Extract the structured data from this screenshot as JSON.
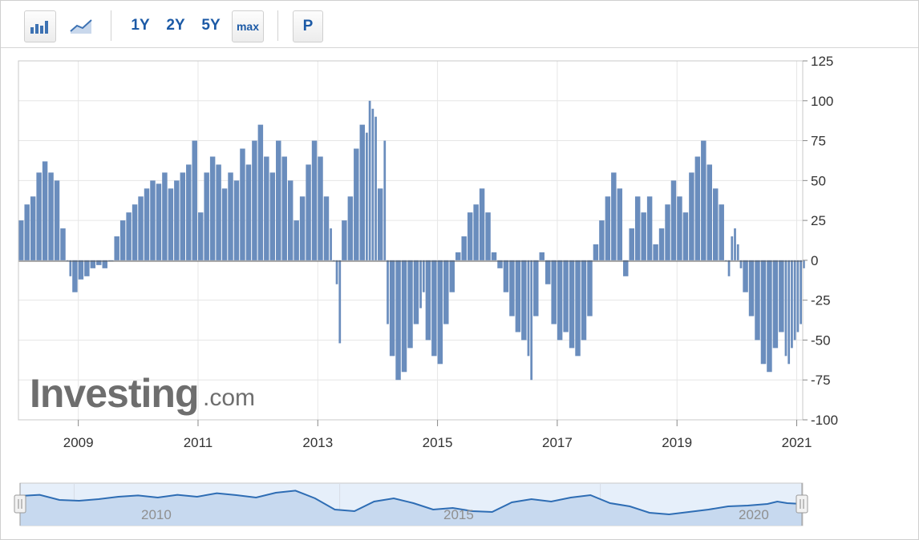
{
  "toolbar": {
    "bar_icon": "bar-chart-icon",
    "line_icon": "line-chart-icon",
    "ranges": [
      "1Y",
      "2Y",
      "5Y",
      "max"
    ],
    "period_label": "P"
  },
  "watermark": {
    "main": "Investing",
    "suffix": ".com"
  },
  "navigator": {
    "labels": [
      "2010",
      "2015",
      "2020"
    ]
  },
  "chart_data": {
    "type": "bar",
    "title": "",
    "xlabel": "",
    "ylabel": "",
    "ylim": [
      -100,
      125
    ],
    "xlim": [
      2008.0,
      2021.1
    ],
    "yticks": [
      125,
      100,
      75,
      50,
      25,
      0,
      -25,
      -50,
      -75,
      -100
    ],
    "xticks": [
      "2009",
      "2011",
      "2013",
      "2015",
      "2017",
      "2019",
      "2021"
    ],
    "grid": true,
    "color": "#6a8dbd",
    "series": [
      {
        "values": [
          [
            2008.0,
            25
          ],
          [
            2008.1,
            35
          ],
          [
            2008.2,
            40
          ],
          [
            2008.3,
            55
          ],
          [
            2008.4,
            62
          ],
          [
            2008.5,
            55
          ],
          [
            2008.6,
            50
          ],
          [
            2008.7,
            20
          ],
          [
            2008.8,
            0
          ],
          [
            2008.85,
            -10
          ],
          [
            2008.9,
            -20
          ],
          [
            2009.0,
            -12
          ],
          [
            2009.1,
            -10
          ],
          [
            2009.2,
            -5
          ],
          [
            2009.3,
            -3
          ],
          [
            2009.4,
            -5
          ],
          [
            2009.5,
            0
          ],
          [
            2009.6,
            15
          ],
          [
            2009.7,
            25
          ],
          [
            2009.8,
            30
          ],
          [
            2009.9,
            35
          ],
          [
            2010.0,
            40
          ],
          [
            2010.1,
            45
          ],
          [
            2010.2,
            50
          ],
          [
            2010.3,
            48
          ],
          [
            2010.4,
            55
          ],
          [
            2010.5,
            45
          ],
          [
            2010.6,
            50
          ],
          [
            2010.7,
            55
          ],
          [
            2010.8,
            60
          ],
          [
            2010.9,
            75
          ],
          [
            2011.0,
            30
          ],
          [
            2011.1,
            55
          ],
          [
            2011.2,
            65
          ],
          [
            2011.3,
            60
          ],
          [
            2011.4,
            45
          ],
          [
            2011.5,
            55
          ],
          [
            2011.6,
            50
          ],
          [
            2011.7,
            70
          ],
          [
            2011.8,
            60
          ],
          [
            2011.9,
            75
          ],
          [
            2012.0,
            85
          ],
          [
            2012.1,
            65
          ],
          [
            2012.2,
            55
          ],
          [
            2012.3,
            75
          ],
          [
            2012.4,
            65
          ],
          [
            2012.5,
            50
          ],
          [
            2012.6,
            25
          ],
          [
            2012.7,
            40
          ],
          [
            2012.8,
            60
          ],
          [
            2012.9,
            75
          ],
          [
            2013.0,
            65
          ],
          [
            2013.1,
            40
          ],
          [
            2013.2,
            20
          ],
          [
            2013.25,
            0
          ],
          [
            2013.3,
            -15
          ],
          [
            2013.35,
            -52
          ],
          [
            2013.4,
            25
          ],
          [
            2013.5,
            40
          ],
          [
            2013.6,
            70
          ],
          [
            2013.7,
            85
          ],
          [
            2013.8,
            80
          ],
          [
            2013.85,
            100
          ],
          [
            2013.9,
            95
          ],
          [
            2013.95,
            90
          ],
          [
            2014.0,
            45
          ],
          [
            2014.1,
            75
          ],
          [
            2014.15,
            -40
          ],
          [
            2014.2,
            -60
          ],
          [
            2014.3,
            -75
          ],
          [
            2014.4,
            -70
          ],
          [
            2014.5,
            -55
          ],
          [
            2014.6,
            -40
          ],
          [
            2014.7,
            -30
          ],
          [
            2014.75,
            -20
          ],
          [
            2014.8,
            -50
          ],
          [
            2014.9,
            -60
          ],
          [
            2015.0,
            -65
          ],
          [
            2015.1,
            -40
          ],
          [
            2015.2,
            -20
          ],
          [
            2015.3,
            5
          ],
          [
            2015.4,
            15
          ],
          [
            2015.5,
            30
          ],
          [
            2015.6,
            35
          ],
          [
            2015.7,
            45
          ],
          [
            2015.8,
            30
          ],
          [
            2015.9,
            5
          ],
          [
            2016.0,
            -5
          ],
          [
            2016.1,
            -20
          ],
          [
            2016.2,
            -35
          ],
          [
            2016.3,
            -45
          ],
          [
            2016.4,
            -50
          ],
          [
            2016.5,
            -60
          ],
          [
            2016.55,
            -75
          ],
          [
            2016.6,
            -35
          ],
          [
            2016.7,
            5
          ],
          [
            2016.8,
            -15
          ],
          [
            2016.9,
            -40
          ],
          [
            2017.0,
            -50
          ],
          [
            2017.1,
            -45
          ],
          [
            2017.2,
            -55
          ],
          [
            2017.3,
            -60
          ],
          [
            2017.4,
            -50
          ],
          [
            2017.5,
            -35
          ],
          [
            2017.6,
            10
          ],
          [
            2017.7,
            25
          ],
          [
            2017.8,
            40
          ],
          [
            2017.9,
            55
          ],
          [
            2018.0,
            45
          ],
          [
            2018.1,
            -10
          ],
          [
            2018.2,
            20
          ],
          [
            2018.3,
            40
          ],
          [
            2018.4,
            30
          ],
          [
            2018.5,
            40
          ],
          [
            2018.6,
            10
          ],
          [
            2018.7,
            20
          ],
          [
            2018.8,
            35
          ],
          [
            2018.9,
            50
          ],
          [
            2019.0,
            40
          ],
          [
            2019.1,
            30
          ],
          [
            2019.2,
            55
          ],
          [
            2019.3,
            65
          ],
          [
            2019.4,
            75
          ],
          [
            2019.5,
            60
          ],
          [
            2019.6,
            45
          ],
          [
            2019.7,
            35
          ],
          [
            2019.8,
            0
          ],
          [
            2019.85,
            -10
          ],
          [
            2019.9,
            15
          ],
          [
            2019.95,
            20
          ],
          [
            2020.0,
            10
          ],
          [
            2020.05,
            -5
          ],
          [
            2020.1,
            -20
          ],
          [
            2020.2,
            -35
          ],
          [
            2020.3,
            -50
          ],
          [
            2020.4,
            -65
          ],
          [
            2020.5,
            -70
          ],
          [
            2020.6,
            -55
          ],
          [
            2020.7,
            -45
          ],
          [
            2020.8,
            -60
          ],
          [
            2020.85,
            -65
          ],
          [
            2020.9,
            -55
          ],
          [
            2020.95,
            -50
          ],
          [
            2021.0,
            -45
          ],
          [
            2021.05,
            -40
          ],
          [
            2021.1,
            -5
          ]
        ]
      }
    ],
    "navigator_series": [
      [
        0.0,
        55
      ],
      [
        0.4,
        62
      ],
      [
        0.8,
        30
      ],
      [
        1.2,
        25
      ],
      [
        1.6,
        35
      ],
      [
        2.0,
        50
      ],
      [
        2.4,
        58
      ],
      [
        2.8,
        45
      ],
      [
        3.2,
        62
      ],
      [
        3.6,
        50
      ],
      [
        4.0,
        72
      ],
      [
        4.4,
        60
      ],
      [
        4.8,
        45
      ],
      [
        5.2,
        75
      ],
      [
        5.6,
        88
      ],
      [
        6.0,
        40
      ],
      [
        6.4,
        -30
      ],
      [
        6.8,
        -40
      ],
      [
        7.2,
        20
      ],
      [
        7.6,
        40
      ],
      [
        8.0,
        10
      ],
      [
        8.4,
        -30
      ],
      [
        8.8,
        -20
      ],
      [
        9.2,
        -40
      ],
      [
        9.6,
        -45
      ],
      [
        10.0,
        15
      ],
      [
        10.4,
        35
      ],
      [
        10.8,
        20
      ],
      [
        11.2,
        45
      ],
      [
        11.6,
        60
      ],
      [
        12.0,
        10
      ],
      [
        12.4,
        -10
      ],
      [
        12.8,
        -50
      ],
      [
        13.2,
        -60
      ],
      [
        13.6,
        -45
      ],
      [
        14.0,
        -30
      ],
      [
        14.4,
        -10
      ],
      [
        14.8,
        -5
      ],
      [
        15.2,
        5
      ],
      [
        15.4,
        20
      ],
      [
        15.6,
        10
      ],
      [
        15.9,
        5
      ]
    ]
  }
}
